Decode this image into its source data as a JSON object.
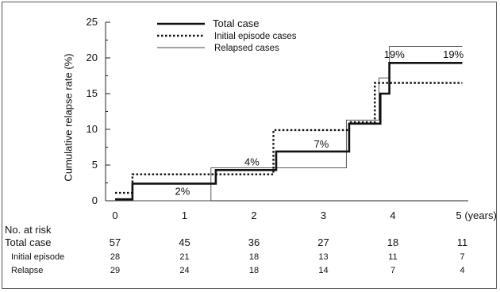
{
  "chart_data": {
    "type": "line",
    "step": true,
    "ylabel": "Cumulative relapse rate (%)",
    "xlabel": "",
    "x_ticks": [
      "0",
      "1",
      "2",
      "3",
      "4",
      "5 (years)"
    ],
    "y_ticks": [
      "0",
      "5",
      "10",
      "15",
      "20",
      "25"
    ],
    "xlim": [
      0,
      5
    ],
    "ylim": [
      0,
      25
    ],
    "grid": false,
    "legend_position": "top-center",
    "series": [
      {
        "name": "Total case",
        "style": "solid-thick",
        "color": "#111111",
        "x": [
          0,
          0.25,
          0.25,
          1.45,
          1.45,
          2.32,
          2.32,
          3.37,
          3.37,
          3.82,
          3.82,
          3.95,
          3.95,
          5.0
        ],
        "y": [
          0.2,
          0.2,
          2.4,
          2.4,
          4.3,
          4.3,
          6.9,
          6.9,
          10.8,
          10.8,
          15.0,
          15.0,
          19.3,
          19.3
        ]
      },
      {
        "name": "Initial episode cases",
        "style": "dotted",
        "color": "#111111",
        "x": [
          0,
          0.25,
          0.25,
          2.28,
          2.28,
          3.37,
          3.37,
          3.74,
          3.74,
          5.0
        ],
        "y": [
          1.1,
          1.1,
          3.7,
          3.7,
          9.9,
          9.9,
          11.0,
          11.0,
          16.5,
          16.5
        ]
      },
      {
        "name": "Relapsed cases",
        "style": "thin",
        "color": "#444444",
        "x": [
          0,
          1.38,
          1.38,
          3.33,
          3.33,
          3.8,
          3.8,
          3.95,
          3.95,
          5.0
        ],
        "y": [
          0.0,
          0.0,
          4.6,
          4.6,
          11.3,
          11.3,
          17.2,
          17.2,
          21.6,
          21.6
        ]
      }
    ],
    "annotations": [
      {
        "text": "2%",
        "x": 0.97,
        "y": 0.6
      },
      {
        "text": "4%",
        "x": 1.97,
        "y": 4.7
      },
      {
        "text": "7%",
        "x": 2.97,
        "y": 7.2
      },
      {
        "text": "19%",
        "x": 4.02,
        "y": 19.8
      },
      {
        "text": "19%",
        "x": 4.87,
        "y": 19.8
      }
    ]
  },
  "risk_table": {
    "title": "No. at risk",
    "rows": [
      {
        "label": "Total case",
        "values": [
          "57",
          "45",
          "36",
          "27",
          "18",
          "11"
        ]
      },
      {
        "label": "Initial episode",
        "values": [
          "28",
          "21",
          "18",
          "13",
          "11",
          "7"
        ]
      },
      {
        "label": "Relapse",
        "values": [
          "29",
          "24",
          "18",
          "14",
          "7",
          "4"
        ]
      }
    ]
  }
}
